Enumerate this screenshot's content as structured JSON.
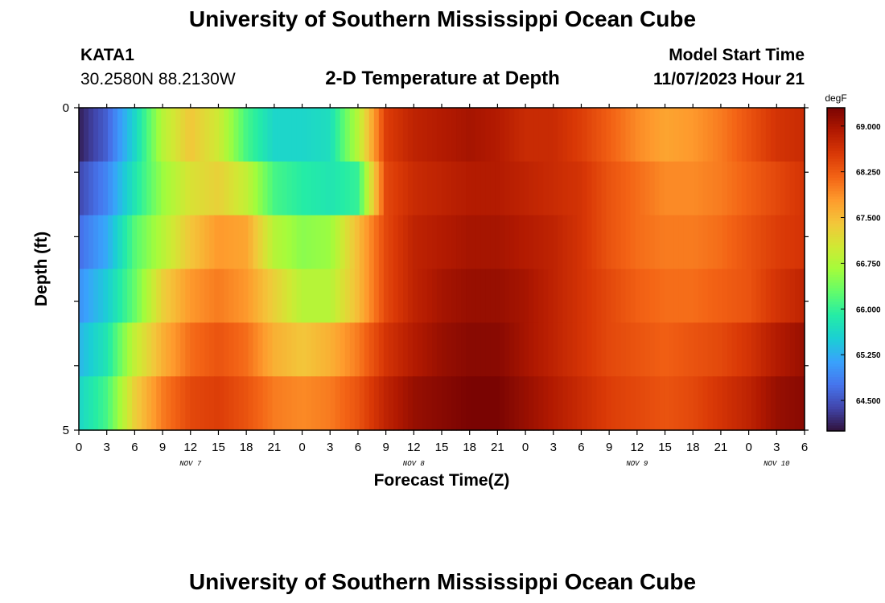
{
  "page_title": "University of Southern Mississippi Ocean Cube",
  "footer_title": "University of Southern Mississippi Ocean Cube",
  "station": {
    "id": "KATA1",
    "coords": "30.2580N  88.2130W"
  },
  "model_start": {
    "label": "Model Start Time",
    "value": "11/07/2023 Hour 21"
  },
  "chart_data": {
    "type": "heatmap",
    "title": "2-D Temperature at Depth",
    "xlabel": "Forecast Time(Z)",
    "ylabel": "Depth (ft)",
    "y_ticks": [
      "0",
      "5"
    ],
    "ylim": [
      0,
      5
    ],
    "x_tick_labels": [
      "0",
      "3",
      "6",
      "9",
      "12",
      "15",
      "18",
      "21",
      "0",
      "3",
      "6",
      "9",
      "12",
      "15",
      "18",
      "21",
      "0",
      "3",
      "6",
      "9",
      "12",
      "15",
      "18",
      "21",
      "0",
      "3",
      "6"
    ],
    "day_labels": [
      {
        "label": "NOV 7",
        "tick_index": 4
      },
      {
        "label": "NOV 8",
        "tick_index": 12
      },
      {
        "label": "NOV 9",
        "tick_index": 20
      },
      {
        "label": "NOV 10",
        "tick_index": 25
      }
    ],
    "colorbar": {
      "unit": "degF",
      "vmin": 64.0,
      "vmax": 69.3,
      "ticks": [
        "69.000",
        "68.250",
        "67.500",
        "66.750",
        "66.000",
        "65.250",
        "64.500"
      ],
      "colors": [
        "#30123b",
        "#4145ab",
        "#4675ed",
        "#39a2fc",
        "#1bcfd4",
        "#24eca6",
        "#61fc6c",
        "#a4fc3b",
        "#d1e834",
        "#f3c63a",
        "#fe9b2d",
        "#f36315",
        "#d93806",
        "#b11901",
        "#7a0402"
      ]
    },
    "depth_rows": [
      0,
      1,
      2,
      3,
      4,
      5
    ],
    "x_hours": [
      0,
      3,
      6,
      9,
      12,
      15,
      18,
      21,
      24,
      27,
      30,
      33,
      36,
      39,
      42,
      45,
      48,
      51,
      54,
      57,
      60,
      63,
      66,
      69,
      72,
      75,
      78
    ],
    "values": [
      [
        64.1,
        64.6,
        65.6,
        66.8,
        67.4,
        67.0,
        66.1,
        65.6,
        65.6,
        65.7,
        66.8,
        68.5,
        68.8,
        68.9,
        69.0,
        68.9,
        68.7,
        68.7,
        68.5,
        68.2,
        67.9,
        67.7,
        67.8,
        68.0,
        68.3,
        68.6,
        68.7
      ],
      [
        64.4,
        64.9,
        65.8,
        66.6,
        67.1,
        67.3,
        66.9,
        66.1,
        65.9,
        65.8,
        66.0,
        68.4,
        68.7,
        68.8,
        68.9,
        68.9,
        68.8,
        68.7,
        68.6,
        68.3,
        68.1,
        67.9,
        67.9,
        68.0,
        68.2,
        68.4,
        68.6
      ],
      [
        64.7,
        65.2,
        66.2,
        66.8,
        67.4,
        67.8,
        67.7,
        66.8,
        66.5,
        66.6,
        67.5,
        68.4,
        68.8,
        68.9,
        69.0,
        69.0,
        68.9,
        68.8,
        68.6,
        68.3,
        68.1,
        68.0,
        68.0,
        68.1,
        68.3,
        68.5,
        68.6
      ],
      [
        65.0,
        65.5,
        66.3,
        67.3,
        67.8,
        68.0,
        67.8,
        67.3,
        66.8,
        66.8,
        67.5,
        68.4,
        68.8,
        69.0,
        69.1,
        69.1,
        69.0,
        68.8,
        68.6,
        68.4,
        68.2,
        68.1,
        68.1,
        68.2,
        68.3,
        68.6,
        68.8
      ],
      [
        65.3,
        65.8,
        66.9,
        67.6,
        68.1,
        68.3,
        68.1,
        67.6,
        67.4,
        67.6,
        68.0,
        68.6,
        68.9,
        69.1,
        69.2,
        69.2,
        69.0,
        68.8,
        68.6,
        68.4,
        68.3,
        68.2,
        68.3,
        68.4,
        68.6,
        68.9,
        69.1
      ],
      [
        65.6,
        66.1,
        67.3,
        68.0,
        68.4,
        68.5,
        68.3,
        68.0,
        67.9,
        68.0,
        68.3,
        68.8,
        69.1,
        69.2,
        69.3,
        69.3,
        69.1,
        68.9,
        68.7,
        68.5,
        68.4,
        68.3,
        68.4,
        68.6,
        68.8,
        69.1,
        69.2
      ]
    ]
  }
}
